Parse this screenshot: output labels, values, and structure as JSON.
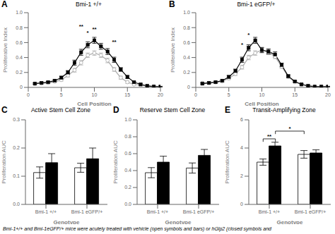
{
  "chart_data": [
    {
      "type": "line",
      "panel_label": "A",
      "title": "Bmi-1 +/+",
      "x_label": "Cell Position",
      "y_label": "Proliferative Index",
      "x": [
        1,
        2,
        3,
        4,
        5,
        6,
        7,
        8,
        9,
        10,
        11,
        12,
        13,
        14,
        15,
        16,
        17,
        18,
        19,
        20
      ],
      "xlim": [
        0,
        20
      ],
      "xticks": [
        0,
        5,
        10,
        15,
        20
      ],
      "ylim": [
        0,
        1
      ],
      "yticks": [
        0,
        0.2,
        0.4,
        0.6,
        0.8,
        {
          "value": 1,
          "label": "1.0"
        }
      ],
      "grid": false,
      "series": [
        {
          "color": "#aaaaaa",
          "marker": "circle",
          "values": [
            0.05,
            0.055,
            0.06,
            0.075,
            0.1,
            0.16,
            0.23,
            0.33,
            0.43,
            0.46,
            0.43,
            0.36,
            0.24,
            0.13,
            0.07,
            0.04,
            0.03,
            0.02,
            0.015,
            0.01
          ],
          "errors": [
            0.008,
            0.008,
            0.01,
            0.01,
            0.015,
            0.02,
            0.025,
            0.03,
            0.03,
            0.03,
            0.03,
            0.03,
            0.025,
            0.02,
            0.015,
            0.01,
            0.008,
            0.005,
            0.005,
            0.005
          ]
        },
        {
          "color": "#000000",
          "marker": "square",
          "values": [
            0.05,
            0.06,
            0.07,
            0.09,
            0.13,
            0.2,
            0.33,
            0.47,
            0.57,
            0.63,
            0.55,
            0.48,
            0.37,
            0.24,
            0.14,
            0.07,
            0.04,
            0.02,
            0.01,
            0.01
          ],
          "errors": [
            0.01,
            0.01,
            0.01,
            0.015,
            0.02,
            0.025,
            0.035,
            0.04,
            0.04,
            0.04,
            0.04,
            0.04,
            0.035,
            0.025,
            0.02,
            0.01,
            0.008,
            0.005,
            0.005,
            0.005
          ]
        }
      ],
      "annotations": [
        {
          "x": 8,
          "y": 0.78,
          "text": "**"
        },
        {
          "x": 9,
          "y": 0.7,
          "text": "*"
        },
        {
          "x": 10,
          "y": 0.75,
          "text": "**"
        },
        {
          "x": 13,
          "y": 0.58,
          "text": "**"
        }
      ]
    },
    {
      "type": "line",
      "panel_label": "B",
      "title": "Bmi-1 eGFP/+",
      "x_label": "Cell Position",
      "y_label": "Proliferative Index",
      "x": [
        1,
        2,
        3,
        4,
        5,
        6,
        7,
        8,
        9,
        10,
        11,
        12,
        13,
        14,
        15,
        16,
        17,
        18,
        19,
        20
      ],
      "xlim": [
        0,
        20
      ],
      "xticks": [
        0,
        5,
        10,
        15,
        20
      ],
      "ylim": [
        0,
        1
      ],
      "yticks": [
        0,
        0.2,
        0.4,
        0.6,
        0.8,
        {
          "value": 1,
          "label": "1.0"
        }
      ],
      "grid": false,
      "series": [
        {
          "color": "#aaaaaa",
          "marker": "circle",
          "values": [
            0.06,
            0.06,
            0.07,
            0.08,
            0.12,
            0.18,
            0.27,
            0.4,
            0.46,
            0.5,
            0.47,
            0.41,
            0.28,
            0.14,
            0.07,
            0.04,
            0.02,
            0.01,
            0.01,
            0.01
          ],
          "errors": [
            0.008,
            0.008,
            0.01,
            0.01,
            0.015,
            0.02,
            0.025,
            0.03,
            0.03,
            0.03,
            0.03,
            0.025,
            0.025,
            0.015,
            0.01,
            0.008,
            0.005,
            0.005,
            0.005,
            0.005
          ]
        },
        {
          "color": "#000000",
          "marker": "square",
          "values": [
            0.05,
            0.06,
            0.07,
            0.09,
            0.14,
            0.22,
            0.37,
            0.53,
            0.63,
            0.5,
            0.48,
            0.44,
            0.3,
            0.15,
            0.08,
            0.04,
            0.02,
            0.01,
            0.01,
            0.01
          ],
          "errors": [
            0.01,
            0.01,
            0.01,
            0.015,
            0.02,
            0.025,
            0.035,
            0.04,
            0.04,
            0.035,
            0.035,
            0.035,
            0.025,
            0.02,
            0.01,
            0.008,
            0.005,
            0.005,
            0.005,
            0.005
          ]
        }
      ],
      "annotations": [
        {
          "x": 7,
          "y": 0.54,
          "text": "*"
        },
        {
          "x": 8,
          "y": 0.67,
          "text": "*"
        }
      ]
    },
    {
      "type": "bar",
      "panel_label": "C",
      "title": "Active Stem Cell Zone",
      "x_label": "Genotype",
      "y_label": "Proliferation AUC",
      "categories": [
        "Bmi-1 +/+",
        "Bmi-1 eGFP/+"
      ],
      "ylim": [
        0,
        0.3
      ],
      "yticks": [
        {
          "value": 0,
          "label": "0.0"
        },
        0.1,
        0.2,
        0.3
      ],
      "grid": false,
      "series": [
        {
          "color": "white",
          "values": [
            0.113,
            0.13
          ],
          "errors": [
            0.02,
            0.016
          ]
        },
        {
          "color": "black",
          "values": [
            0.148,
            0.162
          ],
          "errors": [
            0.032,
            0.038
          ]
        }
      ]
    },
    {
      "type": "bar",
      "panel_label": "D",
      "title": "Reserve Stem Cell Zone",
      "x_label": "Genotype",
      "y_label": "Proliferation AUC",
      "categories": [
        "Bmi-1 +/+",
        "Bmi-1 eGFP/+"
      ],
      "ylim": [
        0,
        1
      ],
      "yticks": [
        {
          "value": 0,
          "label": "0.0"
        },
        0.2,
        0.4,
        0.6,
        0.8,
        {
          "value": 1,
          "label": "1.0"
        }
      ],
      "grid": false,
      "series": [
        {
          "color": "white",
          "values": [
            0.375,
            0.43
          ],
          "errors": [
            0.06,
            0.06
          ]
        },
        {
          "color": "black",
          "values": [
            0.5,
            0.58
          ],
          "errors": [
            0.07,
            0.07
          ]
        }
      ]
    },
    {
      "type": "bar",
      "panel_label": "E",
      "title": "Transit-Amplifying Zone",
      "x_label": "Genotype",
      "y_label": "Proliferation AUC",
      "categories": [
        "Bmi-1 +/+",
        "Bmi-1 eGFP/+"
      ],
      "ylim": [
        0,
        6
      ],
      "yticks": [
        0,
        2,
        4,
        6
      ],
      "grid": false,
      "series": [
        {
          "color": "white",
          "values": [
            3.0,
            3.55
          ],
          "errors": [
            0.22,
            0.27
          ]
        },
        {
          "color": "black",
          "values": [
            4.15,
            3.65
          ],
          "errors": [
            0.26,
            0.22
          ]
        }
      ],
      "annotations": [
        {
          "text": "**",
          "y": 4.65,
          "bars": [
            0,
            1
          ]
        },
        {
          "text": "*",
          "y": 5.2,
          "bars": [
            1,
            2
          ]
        }
      ]
    }
  ],
  "caption": "Bmi-1+/+ and Bmi-1eGFP/+ mice were acutely treated with vehicle (open symbols and bars) or hGlp2 (closed symbols and"
}
